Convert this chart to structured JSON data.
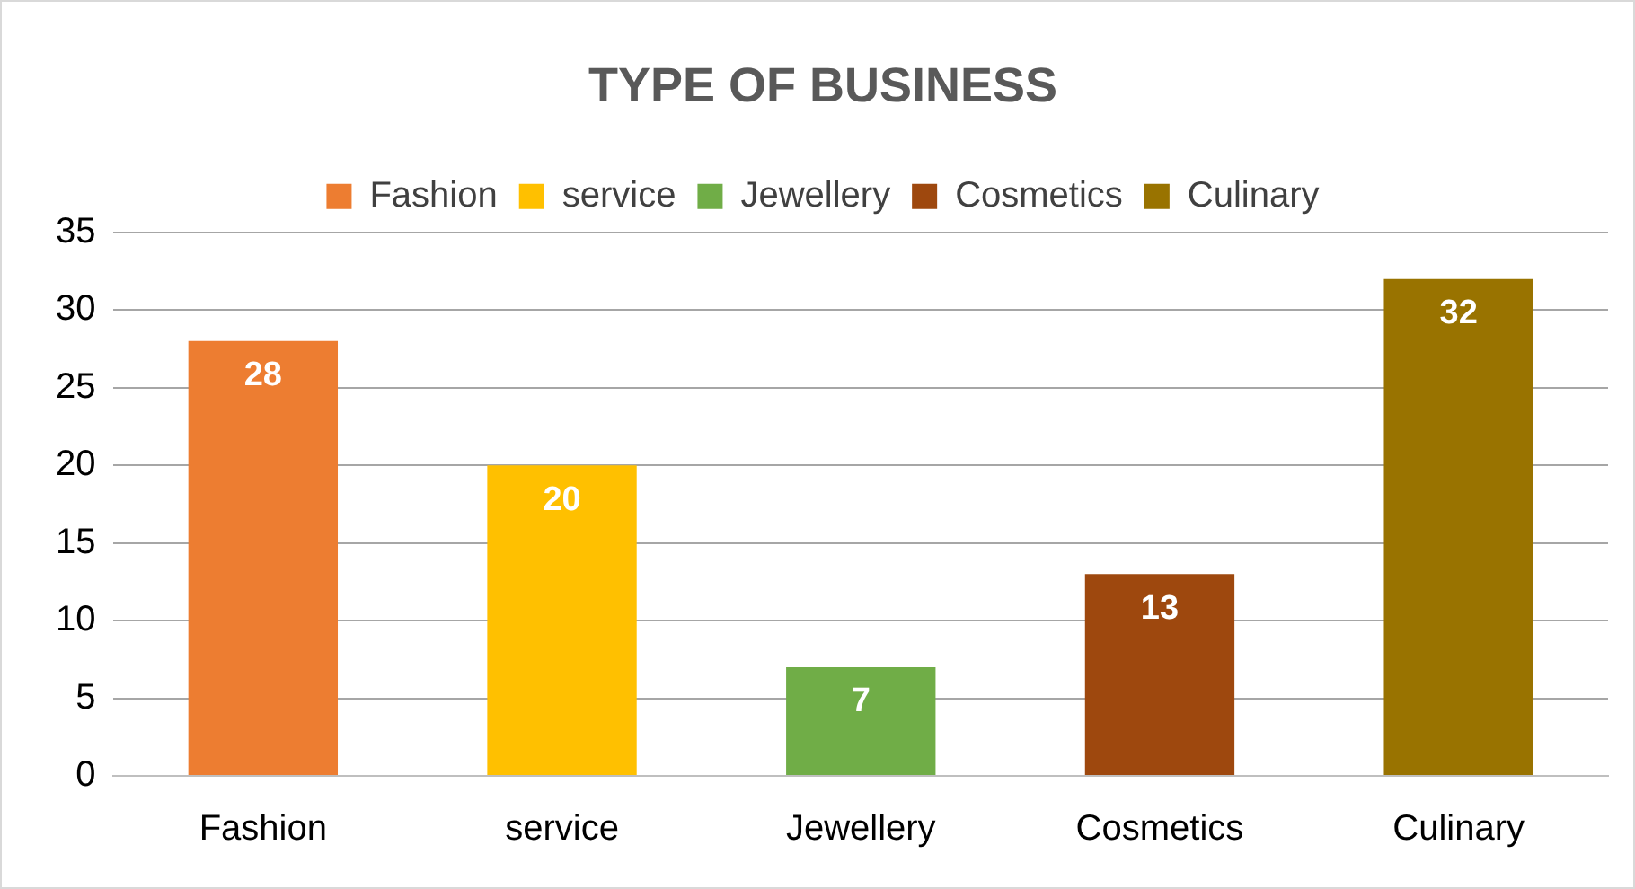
{
  "chart_data": {
    "type": "bar",
    "title": "TYPE OF BUSINESS",
    "categories": [
      "Fashion",
      "service",
      "Jewellery",
      "Cosmetics",
      "Culinary"
    ],
    "series": [
      {
        "name": "Fashion",
        "color": "#ed7d31",
        "values": [
          28,
          null,
          null,
          null,
          null
        ]
      },
      {
        "name": "service",
        "color": "#ffc000",
        "values": [
          null,
          20,
          null,
          null,
          null
        ]
      },
      {
        "name": "Jewellery",
        "color": "#70ad47",
        "values": [
          null,
          null,
          7,
          null,
          null
        ]
      },
      {
        "name": "Cosmetics",
        "color": "#9e480e",
        "values": [
          null,
          null,
          null,
          13,
          null
        ]
      },
      {
        "name": "Culinary",
        "color": "#997300",
        "values": [
          null,
          null,
          null,
          null,
          32
        ]
      }
    ],
    "ylim": [
      0,
      35
    ],
    "yticks": [
      0,
      5,
      10,
      15,
      20,
      25,
      30,
      35
    ],
    "grid": "y",
    "legend": "top",
    "data_labels": true
  }
}
